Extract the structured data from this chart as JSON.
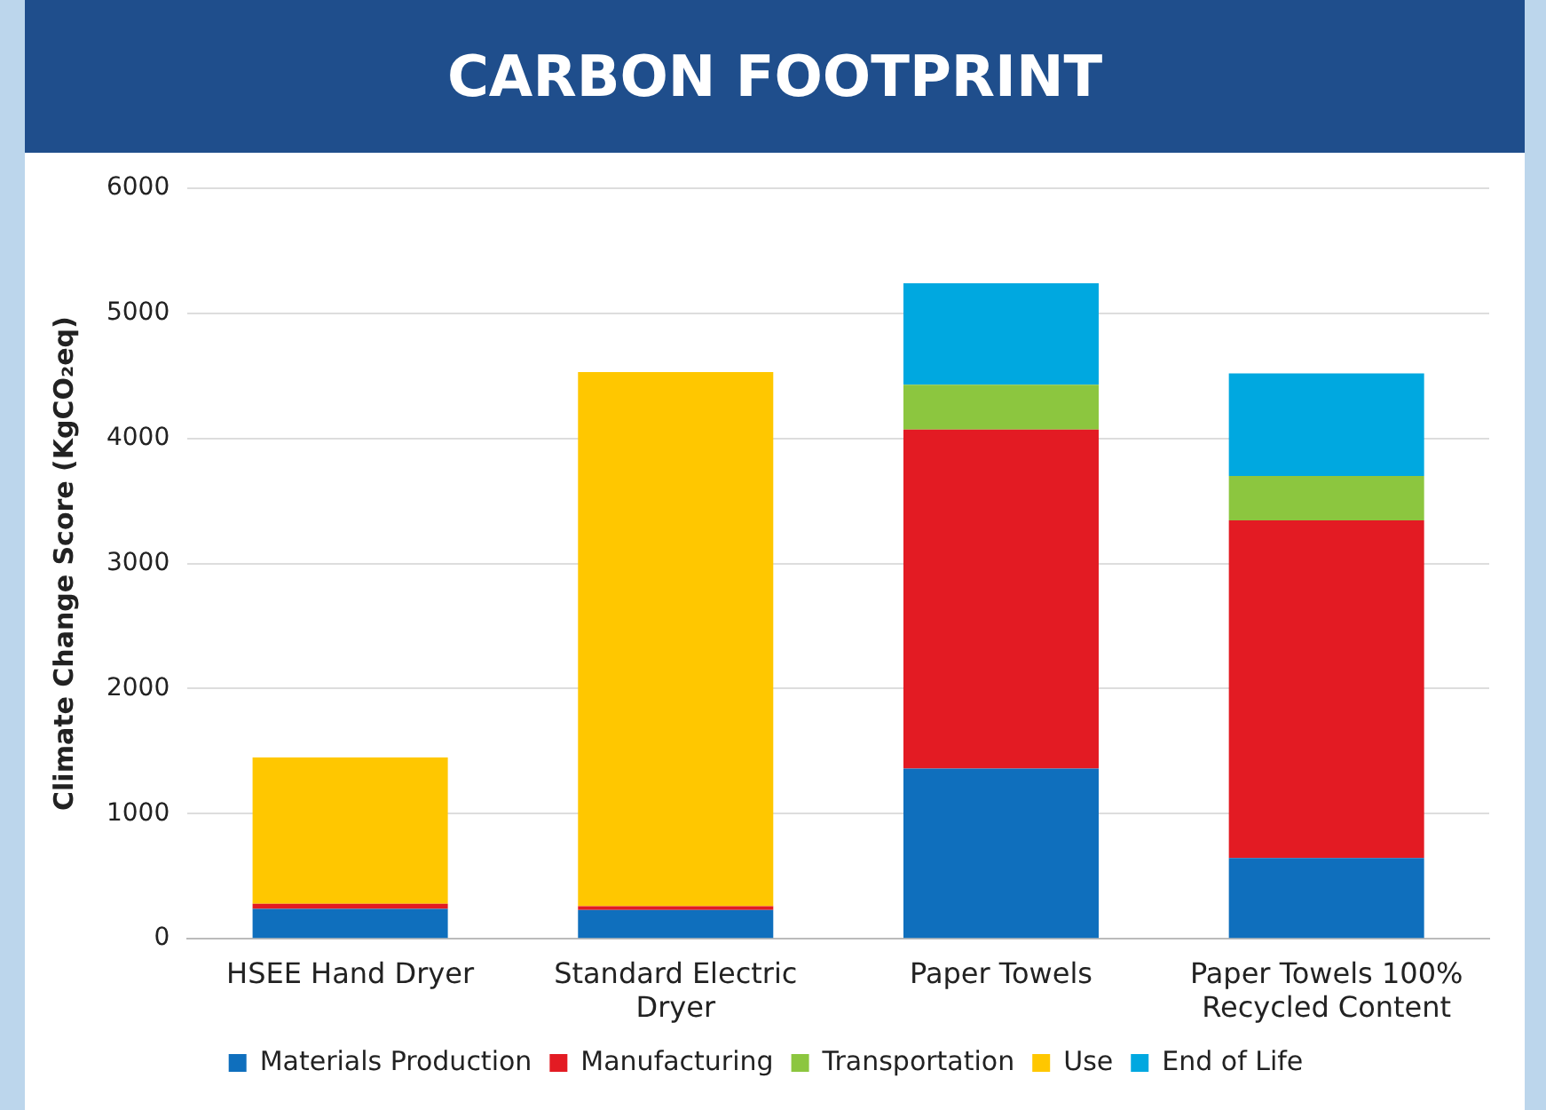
{
  "chart_data": {
    "type": "bar",
    "title": "CARBON FOOTPRINT",
    "ylabel": "Climate Change Score (KgCO₂eq)",
    "categories": [
      "HSEE Hand Dryer",
      "Standard Electric Dryer",
      "Paper Towels",
      "Paper Towels 100% Recycled Content"
    ],
    "series": [
      {
        "name": "Materials Production",
        "color": "#0f6fbd",
        "values": [
          240,
          230,
          1360,
          645
        ]
      },
      {
        "name": "Manufacturing",
        "color": "#e31b23",
        "values": [
          40,
          30,
          2710,
          2700
        ]
      },
      {
        "name": "Transportation",
        "color": "#8cc63f",
        "values": [
          0,
          0,
          360,
          355
        ]
      },
      {
        "name": "Use",
        "color": "#ffc700",
        "values": [
          1170,
          4270,
          0,
          0
        ]
      },
      {
        "name": "End of Life",
        "color": "#00a8e0",
        "values": [
          0,
          0,
          810,
          820
        ]
      }
    ],
    "stacked": true,
    "ylim": [
      0,
      6000
    ],
    "yticks": [
      0,
      1000,
      2000,
      3000,
      4000,
      5000,
      6000
    ],
    "grid": "y",
    "legend": "bottom"
  }
}
